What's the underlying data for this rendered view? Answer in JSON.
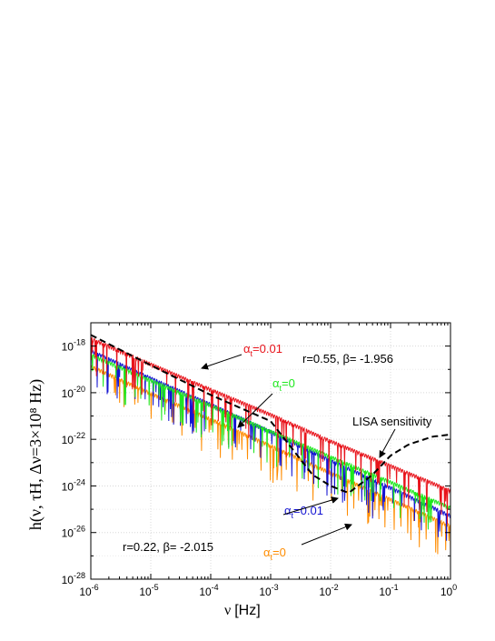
{
  "chart_data": {
    "type": "line",
    "title": "",
    "xlabel": "ν  [Hz]",
    "ylabel": "h(ν, τH, Δν=3×10⁸ Hz)",
    "x_scale": "log",
    "y_scale": "log",
    "xlim": [
      1e-06,
      1
    ],
    "ylim": [
      1e-28,
      1e-17
    ],
    "grid": true,
    "x_ticks": [
      {
        "value": 1e-06,
        "base": "10",
        "exp": "-6"
      },
      {
        "value": 1e-05,
        "base": "10",
        "exp": "-5"
      },
      {
        "value": 0.0001,
        "base": "10",
        "exp": "-4"
      },
      {
        "value": 0.001,
        "base": "10",
        "exp": "-3"
      },
      {
        "value": 0.01,
        "base": "10",
        "exp": "-2"
      },
      {
        "value": 0.1,
        "base": "10",
        "exp": "-1"
      },
      {
        "value": 1,
        "base": "10",
        "exp": "0"
      }
    ],
    "y_ticks": [
      {
        "value": 1e-18,
        "base": "10",
        "exp": "-18"
      },
      {
        "value": 1e-20,
        "base": "10",
        "exp": "-20"
      },
      {
        "value": 1e-22,
        "base": "10",
        "exp": "-22"
      },
      {
        "value": 1e-24,
        "base": "10",
        "exp": "-24"
      },
      {
        "value": 1e-26,
        "base": "10",
        "exp": "-26"
      },
      {
        "value": 1e-28,
        "base": "10",
        "exp": "-28"
      }
    ],
    "series": [
      {
        "label": "α_t=0.01 (r=0.55, β=-1.956)",
        "color": "#e8141c",
        "style": "solid",
        "oscillating": true,
        "x": [
          1e-06,
          1e-05,
          0.0001,
          0.001,
          0.01,
          0.1,
          1
        ],
        "y": [
          2e-18,
          1.6e-19,
          1.3e-20,
          1.1e-21,
          8e-23,
          7e-24,
          6e-25
        ]
      },
      {
        "label": "α_t=0 (r=0.55, β=-1.956)",
        "color": "#1ee81e",
        "style": "solid",
        "oscillating": true,
        "x": [
          1e-06,
          1e-05,
          0.0001,
          0.001,
          0.01,
          0.1,
          1
        ],
        "y": [
          4e-19,
          3.2e-20,
          2.7e-21,
          2.1e-22,
          1.7e-23,
          1.4e-24,
          1.1e-25
        ]
      },
      {
        "label": "α_t=0.01 (r=0.22, β=-2.015)",
        "color": "#1414d2",
        "style": "solid",
        "oscillating": true,
        "x": [
          1e-06,
          1e-05,
          0.0001,
          0.001,
          0.01,
          0.1,
          1
        ],
        "y": [
          6e-19,
          4e-20,
          3e-21,
          2e-22,
          1.2e-23,
          8e-25,
          5e-26
        ]
      },
      {
        "label": "α_t=0 (r=0.22, β=-2.015)",
        "color": "#ff8c00",
        "style": "solid",
        "oscillating": true,
        "x": [
          1e-06,
          1e-05,
          0.0001,
          0.001,
          0.01,
          0.1,
          1
        ],
        "y": [
          1.3e-19,
          9e-21,
          7e-22,
          5e-23,
          3.5e-24,
          2.5e-25,
          1.8e-26
        ]
      },
      {
        "label": "LISA sensitivity",
        "color": "#000000",
        "style": "dashed",
        "oscillating": false,
        "x": [
          1e-06,
          1e-05,
          0.0001,
          0.001,
          0.005,
          0.01,
          0.02,
          0.05,
          0.1,
          0.2,
          0.5,
          1
        ],
        "y": [
          3e-18,
          1.5e-19,
          8e-21,
          6e-22,
          3e-24,
          1e-24,
          5e-25,
          3e-24,
          2e-23,
          6e-23,
          1.3e-22,
          1.6e-22
        ]
      }
    ],
    "annotations": [
      {
        "id": "a_red",
        "text": "α",
        "sub": "t",
        "rest": "=0.01",
        "color": "#e8141c",
        "anchor_x": 0.012,
        "anchor_y": 2.5e-18
      },
      {
        "id": "a_green",
        "text": "α",
        "sub": "t",
        "rest": "=0",
        "color": "#1ee81e",
        "anchor_x": 0.006,
        "anchor_y": 3e-20
      },
      {
        "id": "a_blue",
        "text": "α",
        "sub": "t",
        "rest": "=0.01",
        "color": "#1414d2",
        "anchor_x": 0.0028,
        "anchor_y": 8e-26
      },
      {
        "id": "a_orange",
        "text": "α",
        "sub": "t",
        "rest": "=0",
        "color": "#ff8c00",
        "anchor_x": 0.0035,
        "anchor_y": 3e-27
      }
    ],
    "texts": {
      "r055": "r=0.55,  β= -1.956",
      "r022": "r=0.22,  β= -2.015",
      "lisa": "LISA sensitivity"
    }
  }
}
